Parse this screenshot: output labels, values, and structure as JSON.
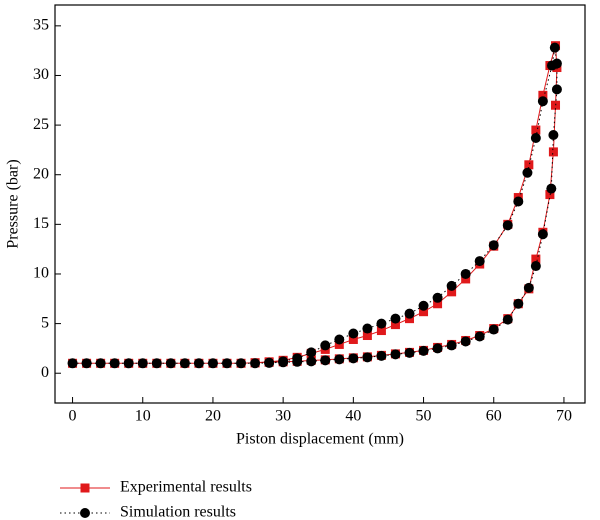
{
  "chart_data": {
    "type": "line",
    "xlabel": "Piston displacement (mm)",
    "ylabel": "Pressure (bar)",
    "xlim": [
      -2.5,
      73
    ],
    "ylim": [
      -3,
      37.1
    ],
    "xticks": [
      0,
      10,
      20,
      30,
      40,
      50,
      60,
      70
    ],
    "yticks": [
      0,
      5,
      10,
      15,
      20,
      25,
      30,
      35
    ],
    "series": [
      {
        "name": "Experimental results",
        "color": "#e0191b",
        "marker": "square",
        "line": "solid",
        "x": [
          0,
          2,
          4,
          6,
          8,
          10,
          12,
          14,
          16,
          18,
          20,
          22,
          24,
          26,
          28,
          30,
          32,
          34,
          36,
          38,
          40,
          42,
          44,
          46,
          48,
          50,
          52,
          54,
          56,
          58,
          60,
          62,
          63.5,
          65,
          66,
          67,
          68,
          68.5,
          68.8,
          69,
          68.8,
          68,
          67,
          66,
          65,
          63.5,
          62,
          60,
          58,
          56,
          54,
          52,
          50,
          48,
          46,
          44,
          42,
          40,
          38,
          36,
          34,
          32,
          30,
          28,
          26
        ],
        "values": [
          1.0,
          1.0,
          1.0,
          1.0,
          1.0,
          1.0,
          1.0,
          1.0,
          1.0,
          1.0,
          1.0,
          1.0,
          1.0,
          1.05,
          1.1,
          1.15,
          1.2,
          1.3,
          1.35,
          1.45,
          1.55,
          1.65,
          1.8,
          1.95,
          2.1,
          2.3,
          2.6,
          2.9,
          3.3,
          3.8,
          4.5,
          5.5,
          7.0,
          8.5,
          11.5,
          14.2,
          18.0,
          22.3,
          27.0,
          30.8,
          33.0,
          31.0,
          28.0,
          24.5,
          21.0,
          17.7,
          15.0,
          12.8,
          11.0,
          9.5,
          8.2,
          7.0,
          6.2,
          5.5,
          4.9,
          4.3,
          3.8,
          3.4,
          2.9,
          2.4,
          2.0,
          1.6,
          1.3,
          1.15,
          1.05
        ]
      },
      {
        "name": "Simulation results",
        "color": "#000000",
        "marker": "circle",
        "line": "dotted",
        "x": [
          0,
          2,
          4,
          6,
          8,
          10,
          12,
          14,
          16,
          18,
          20,
          22,
          24,
          26,
          28,
          30,
          32,
          34,
          36,
          38,
          40,
          42,
          44,
          46,
          48,
          50,
          52,
          54,
          56,
          58,
          60,
          62,
          63.5,
          65,
          66,
          67,
          68.2,
          68.5,
          69,
          69,
          68.7,
          68.3,
          67,
          66,
          64.8,
          63.5,
          62,
          60,
          58,
          56,
          54,
          52,
          50,
          48,
          46,
          44,
          42,
          40,
          38,
          36,
          34,
          32,
          30,
          28
        ],
        "values": [
          1.0,
          1.0,
          1.0,
          1.0,
          1.0,
          1.0,
          1.0,
          1.0,
          1.0,
          1.0,
          1.0,
          1.0,
          1.0,
          1.0,
          1.05,
          1.1,
          1.15,
          1.2,
          1.3,
          1.4,
          1.5,
          1.6,
          1.75,
          1.9,
          2.05,
          2.25,
          2.5,
          2.8,
          3.2,
          3.7,
          4.4,
          5.4,
          7.0,
          8.6,
          10.8,
          14.0,
          18.6,
          24.0,
          28.6,
          31.2,
          32.8,
          31.0,
          27.4,
          23.7,
          20.2,
          17.3,
          14.9,
          12.9,
          11.3,
          10.0,
          8.8,
          7.6,
          6.8,
          6.0,
          5.5,
          5.0,
          4.5,
          4.0,
          3.4,
          2.8,
          2.1,
          1.5,
          1.2,
          1.05
        ]
      }
    ]
  }
}
